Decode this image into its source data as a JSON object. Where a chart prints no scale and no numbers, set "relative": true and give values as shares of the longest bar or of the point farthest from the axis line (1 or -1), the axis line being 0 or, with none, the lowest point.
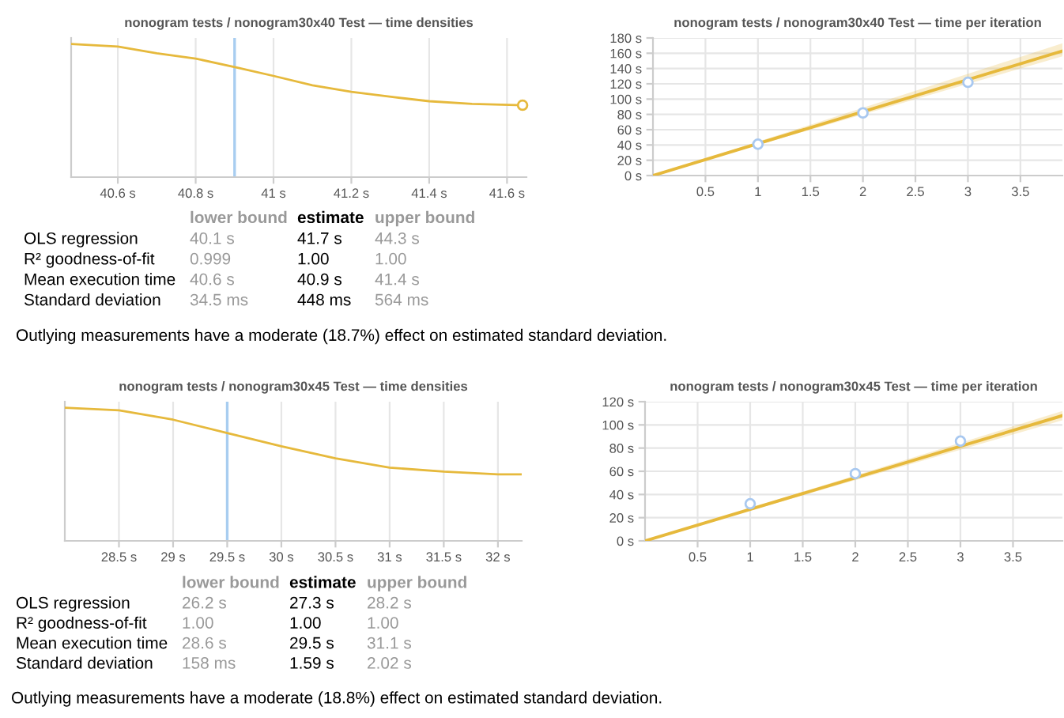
{
  "chart_data": [
    {
      "type": "line",
      "title": "nonogram tests / nonogram30x40 Test — time densities",
      "relative": true,
      "grid": "x",
      "xlim": [
        40.48,
        41.65
      ],
      "xticks": [
        {
          "value": 40.6,
          "label": "40.6 s"
        },
        {
          "value": 40.8,
          "label": "40.8 s"
        },
        {
          "value": 41,
          "label": "41 s"
        },
        {
          "value": 41.2,
          "label": "41.2 s"
        },
        {
          "value": 41.4,
          "label": "41.4 s"
        },
        {
          "value": 41.6,
          "label": "41.6 s"
        }
      ],
      "ref_lines": [
        {
          "axis": "x",
          "value": 40.9,
          "color": "#a8cdf0"
        }
      ],
      "series": [
        {
          "type": "line",
          "color": "#e6b93c",
          "x": [
            40.48,
            40.6,
            40.7,
            40.8,
            40.91,
            41.0,
            41.1,
            41.2,
            41.31,
            41.4,
            41.51,
            41.64
          ],
          "values": [
            1,
            0.98,
            0.93,
            0.89,
            0.82,
            0.76,
            0.69,
            0.64,
            0.6,
            0.57,
            0.55,
            0.54
          ]
        },
        {
          "type": "scatter",
          "color": "#e6b93c",
          "marker": "circle",
          "x": [
            41.64
          ],
          "values": [
            0.54
          ]
        }
      ]
    },
    {
      "type": "line",
      "title": "nonogram tests / nonogram30x40 Test — time per iteration",
      "grid": true,
      "xlim": [
        0,
        3.9
      ],
      "xticks": [
        0.5,
        1,
        1.5,
        2,
        2.5,
        3,
        3.5
      ],
      "ylim": [
        0,
        180
      ],
      "yticks": [
        {
          "value": 0,
          "label": "0 s"
        },
        {
          "value": 20,
          "label": "20 s"
        },
        {
          "value": 40,
          "label": "40 s"
        },
        {
          "value": 60,
          "label": "60 s"
        },
        {
          "value": 80,
          "label": "80 s"
        },
        {
          "value": 100,
          "label": "100 s"
        },
        {
          "value": 120,
          "label": "120 s"
        },
        {
          "value": 140,
          "label": "140 s"
        },
        {
          "value": 160,
          "label": "160 s"
        },
        {
          "value": 180,
          "label": "180 s"
        }
      ],
      "series": [
        {
          "type": "line",
          "color": "#e6b93c",
          "x": [
            0,
            3.9
          ],
          "values": [
            0,
            163
          ],
          "lower": [
            0,
            156
          ],
          "upper": [
            0,
            173
          ]
        },
        {
          "type": "scatter",
          "color": "#a8c8f0",
          "marker": "circle",
          "x": [
            1,
            2,
            3
          ],
          "values": [
            41,
            82,
            122
          ]
        }
      ]
    },
    {
      "type": "other",
      "categories": [
        "lower bound",
        "estimate",
        "upper bound"
      ],
      "colors": [
        "#999999",
        "#000000",
        "#999999"
      ],
      "y_categories": [
        "OLS regression",
        "R² goodness-of-fit",
        "Mean execution time",
        "Standard deviation"
      ],
      "cell_labels": [
        [
          "40.1 s",
          "41.7 s",
          "44.3 s"
        ],
        [
          "0.999",
          "1.00",
          "1.00"
        ],
        [
          "40.6 s",
          "40.9 s",
          "41.4 s"
        ],
        [
          "34.5 ms",
          "448 ms",
          "564 ms"
        ]
      ],
      "annotations": [
        "Outlying measurements have a moderate (18.7%) effect on estimated standard deviation."
      ]
    },
    {
      "type": "line",
      "title": "nonogram tests / nonogram30x45 Test — time densities",
      "relative": true,
      "grid": "x",
      "xlim": [
        28.0,
        32.22
      ],
      "xticks": [
        {
          "value": 28.5,
          "label": "28.5 s"
        },
        {
          "value": 29,
          "label": "29 s"
        },
        {
          "value": 29.5,
          "label": "29.5 s"
        },
        {
          "value": 30,
          "label": "30 s"
        },
        {
          "value": 30.5,
          "label": "30.5 s"
        },
        {
          "value": 31,
          "label": "31 s"
        },
        {
          "value": 31.5,
          "label": "31.5 s"
        },
        {
          "value": 32,
          "label": "32 s"
        }
      ],
      "ref_lines": [
        {
          "axis": "x",
          "value": 29.5,
          "color": "#a8cdf0"
        }
      ],
      "series": [
        {
          "type": "line",
          "color": "#e6b93c",
          "x": [
            28.0,
            28.5,
            29,
            29.5,
            30,
            30.5,
            31,
            31.5,
            32,
            32.22
          ],
          "values": [
            1,
            0.98,
            0.91,
            0.81,
            0.71,
            0.62,
            0.55,
            0.52,
            0.5,
            0.5
          ]
        }
      ]
    },
    {
      "type": "line",
      "title": "nonogram tests / nonogram30x45 Test — time per iteration",
      "grid": true,
      "xlim": [
        0,
        3.97
      ],
      "xticks": [
        0.5,
        1,
        1.5,
        2,
        2.5,
        3,
        3.5
      ],
      "ylim": [
        0,
        120
      ],
      "yticks": [
        {
          "value": 0,
          "label": "0 s"
        },
        {
          "value": 20,
          "label": "20 s"
        },
        {
          "value": 40,
          "label": "40 s"
        },
        {
          "value": 60,
          "label": "60 s"
        },
        {
          "value": 80,
          "label": "80 s"
        },
        {
          "value": 100,
          "label": "100 s"
        },
        {
          "value": 120,
          "label": "120 s"
        }
      ],
      "series": [
        {
          "type": "line",
          "color": "#e6b93c",
          "x": [
            0,
            3.97
          ],
          "values": [
            0,
            108
          ],
          "lower": [
            0,
            104
          ],
          "upper": [
            0,
            112
          ]
        },
        {
          "type": "scatter",
          "color": "#a8c8f0",
          "marker": "circle",
          "x": [
            1,
            2,
            3
          ],
          "values": [
            32,
            58,
            86
          ]
        }
      ]
    },
    {
      "type": "other",
      "categories": [
        "lower bound",
        "estimate",
        "upper bound"
      ],
      "colors": [
        "#999999",
        "#000000",
        "#999999"
      ],
      "y_categories": [
        "OLS regression",
        "R² goodness-of-fit",
        "Mean execution time",
        "Standard deviation"
      ],
      "cell_labels": [
        [
          "26.2 s",
          "27.3 s",
          "28.2 s"
        ],
        [
          "1.00",
          "1.00",
          "1.00"
        ],
        [
          "28.6 s",
          "29.5 s",
          "31.1 s"
        ],
        [
          "158 ms",
          "1.59 s",
          "2.02 s"
        ]
      ],
      "annotations": [
        "Outlying measurements have a moderate (18.8%) effect on estimated standard deviation."
      ]
    }
  ]
}
